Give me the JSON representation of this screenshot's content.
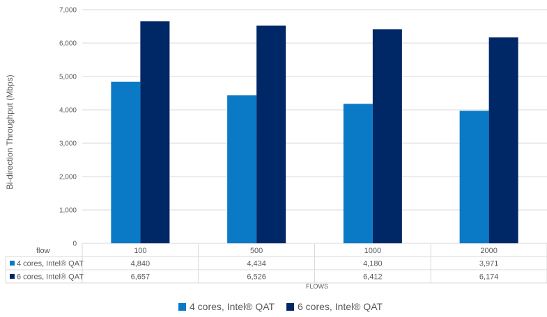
{
  "chart_data": {
    "type": "bar",
    "title": "",
    "ylabel": "Bi-direction Throughput (Mbps)",
    "xlabel": "FLOWS",
    "table_header": "flow",
    "categories": [
      "100",
      "500",
      "1000",
      "2000"
    ],
    "ylim": [
      0,
      7000
    ],
    "yticks": [
      0,
      1000,
      2000,
      3000,
      4000,
      5000,
      6000,
      7000
    ],
    "ytick_labels": [
      "0",
      "1,000",
      "2,000",
      "3,000",
      "4,000",
      "5,000",
      "6,000",
      "7,000"
    ],
    "grid": true,
    "legend_position": "bottom",
    "series": [
      {
        "name": "4 cores, Intel® QAT",
        "color": "#0A7AC6",
        "values": [
          4840,
          4434,
          4180,
          3971
        ],
        "labels": [
          "4,840",
          "4,434",
          "4,180",
          "3,971"
        ]
      },
      {
        "name": "6 cores, Intel® QAT",
        "color": "#002766",
        "values": [
          6657,
          6526,
          6412,
          6174
        ],
        "labels": [
          "6,657",
          "6,526",
          "6,412",
          "6,174"
        ]
      }
    ]
  }
}
